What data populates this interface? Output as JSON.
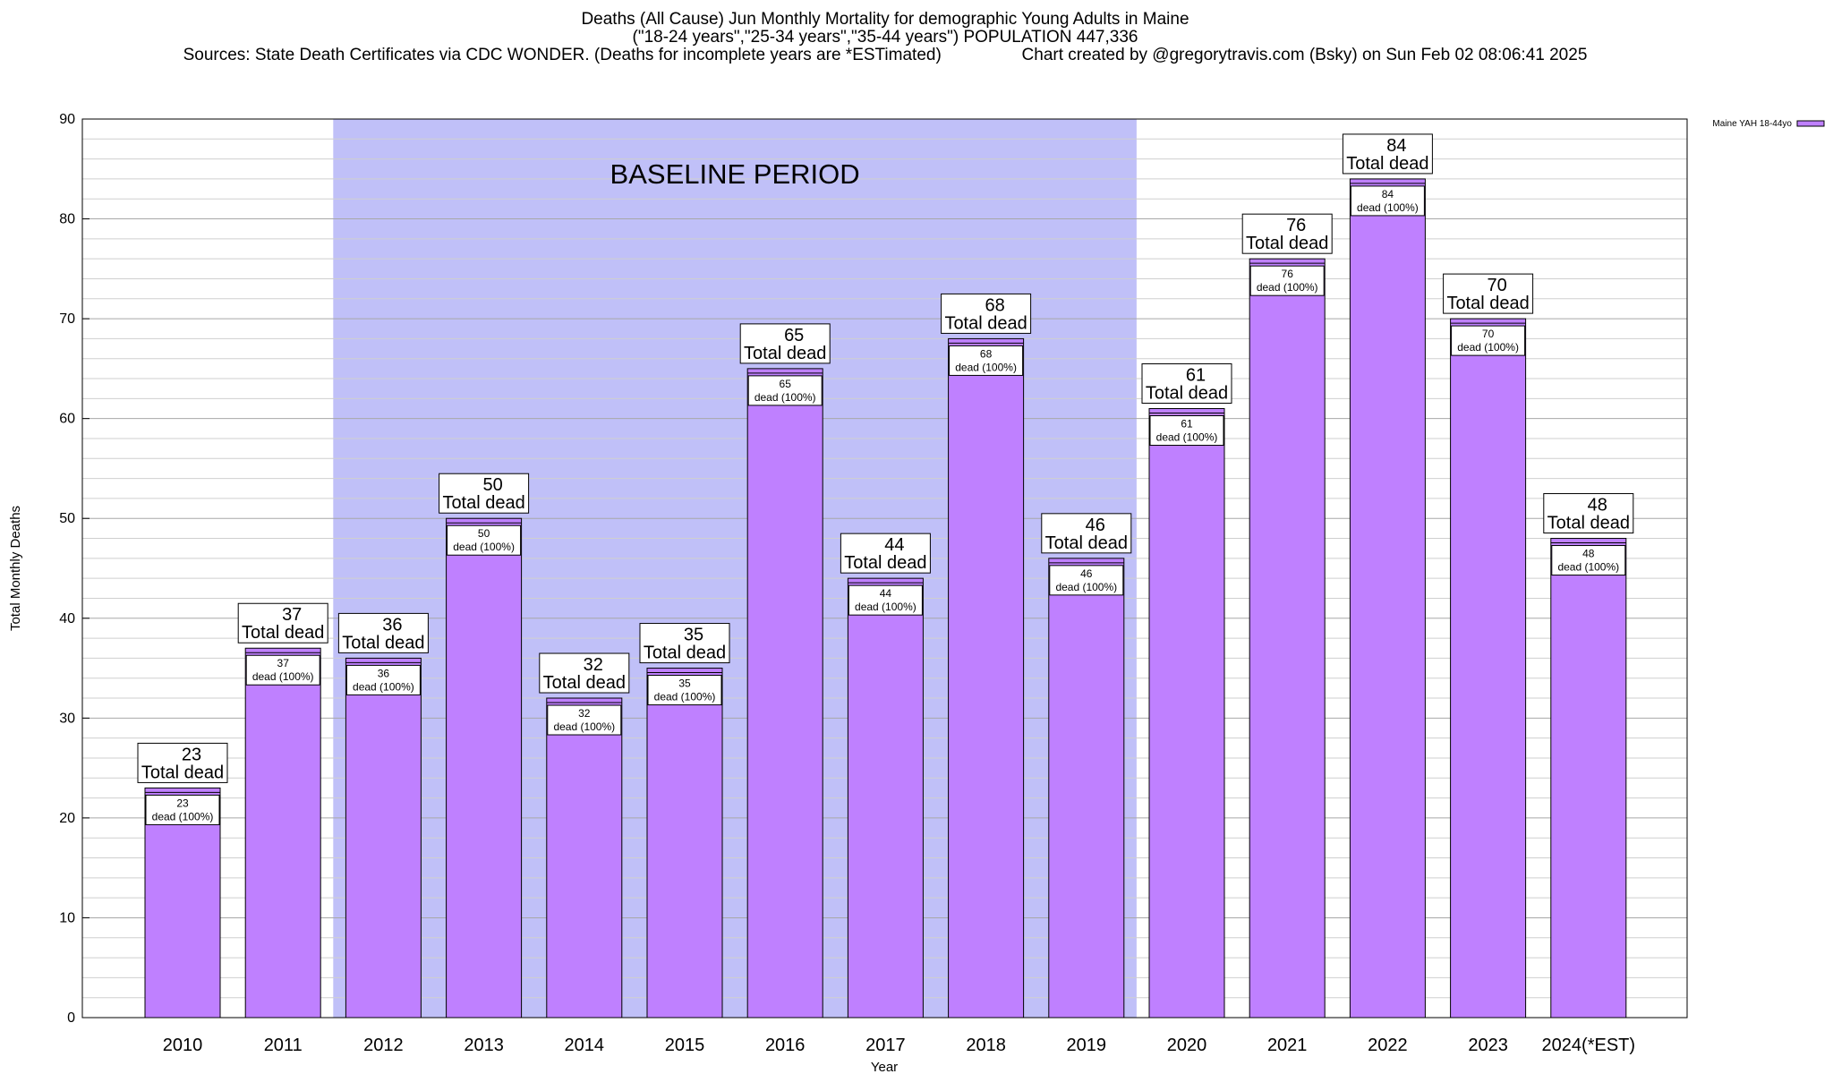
{
  "chart_data": {
    "type": "bar",
    "title": "Deaths (All Cause) Jun Monthly Mortality for demographic Young Adults in Maine",
    "subtitle": "(\"18-24 years\",\"25-34 years\",\"35-44 years\") POPULATION 447,336",
    "sources": "Sources: State Death Certificates via CDC WONDER. (Deaths for incomplete years are *ESTimated)",
    "credit": "Chart created by @gregorytravis.com (Bsky) on Sun Feb 02 08:06:41 2025",
    "xlabel": "Year",
    "ylabel": "Total Monthly Deaths",
    "ylim": [
      0,
      90
    ],
    "yticks": [
      0,
      10,
      20,
      30,
      40,
      50,
      60,
      70,
      80,
      90
    ],
    "grid": true,
    "legend_placement": "top-right",
    "categories": [
      "2010",
      "2011",
      "2012",
      "2013",
      "2014",
      "2015",
      "2016",
      "2017",
      "2018",
      "2019",
      "2020",
      "2021",
      "2022",
      "2023",
      "2024(*EST)"
    ],
    "series": [
      {
        "name": "Maine YAH 18-44yo",
        "color": "#bf80ff",
        "values": [
          23,
          37,
          36,
          50,
          32,
          35,
          65,
          44,
          68,
          46,
          61,
          76,
          84,
          70,
          48
        ]
      }
    ],
    "top_label_suffix": "Total dead",
    "inner_label_suffix": "dead (100%)",
    "baseline": {
      "label": "BASELINE PERIOD",
      "start": "2012",
      "end": "2019",
      "color": "#c0c0f8"
    }
  }
}
